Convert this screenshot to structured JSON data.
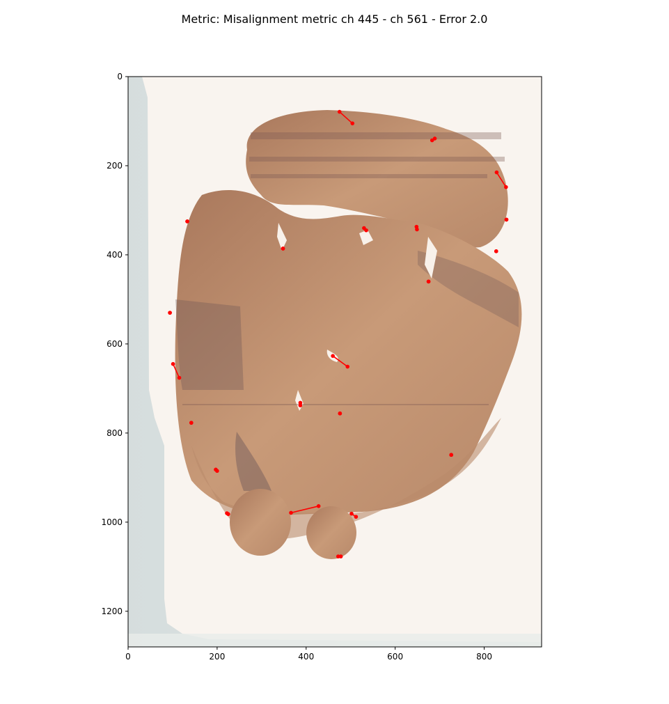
{
  "chart_data": {
    "type": "scatter",
    "title": "Metric: Misalignment metric ch 445 - ch 561 - Error 2.0",
    "xlabel": "",
    "ylabel": "",
    "xlim": [
      0,
      929
    ],
    "ylim": [
      1280,
      0
    ],
    "y_inverted": true,
    "x_ticks": [
      0,
      200,
      400,
      600,
      800
    ],
    "y_ticks": [
      0,
      200,
      400,
      600,
      800,
      1000,
      1200
    ],
    "grid": false,
    "background": "brain tissue section image",
    "colors": {
      "marker": "#ff0000",
      "tissue": "#b9855f",
      "tissue_dark": "#7a5a52",
      "background": "#f8f3ee",
      "top_line": "#00cc00"
    },
    "segments": [
      {
        "x1": 475,
        "y1": 79,
        "x2": 504,
        "y2": 105
      },
      {
        "x1": 683,
        "y1": 143,
        "x2": 689,
        "y2": 139
      },
      {
        "x1": 828,
        "y1": 215,
        "x2": 849,
        "y2": 248
      },
      {
        "x1": 133,
        "y1": 325,
        "x2": 133,
        "y2": 325
      },
      {
        "x1": 530,
        "y1": 340,
        "x2": 535,
        "y2": 345
      },
      {
        "x1": 648,
        "y1": 337,
        "x2": 649,
        "y2": 343
      },
      {
        "x1": 850,
        "y1": 321,
        "x2": 850,
        "y2": 321
      },
      {
        "x1": 348,
        "y1": 386,
        "x2": 348,
        "y2": 386
      },
      {
        "x1": 827,
        "y1": 392,
        "x2": 827,
        "y2": 392
      },
      {
        "x1": 675,
        "y1": 460,
        "x2": 675,
        "y2": 460
      },
      {
        "x1": 94,
        "y1": 530,
        "x2": 94,
        "y2": 530
      },
      {
        "x1": 460,
        "y1": 627,
        "x2": 493,
        "y2": 651
      },
      {
        "x1": 101,
        "y1": 645,
        "x2": 115,
        "y2": 676
      },
      {
        "x1": 387,
        "y1": 732,
        "x2": 387,
        "y2": 738
      },
      {
        "x1": 476,
        "y1": 756,
        "x2": 476,
        "y2": 756
      },
      {
        "x1": 142,
        "y1": 777,
        "x2": 142,
        "y2": 777
      },
      {
        "x1": 726,
        "y1": 849,
        "x2": 726,
        "y2": 849
      },
      {
        "x1": 197,
        "y1": 882,
        "x2": 200,
        "y2": 885
      },
      {
        "x1": 222,
        "y1": 980,
        "x2": 225,
        "y2": 982
      },
      {
        "x1": 366,
        "y1": 979,
        "x2": 428,
        "y2": 964
      },
      {
        "x1": 502,
        "y1": 981,
        "x2": 512,
        "y2": 988
      },
      {
        "x1": 472,
        "y1": 1077,
        "x2": 478,
        "y2": 1077
      }
    ]
  }
}
